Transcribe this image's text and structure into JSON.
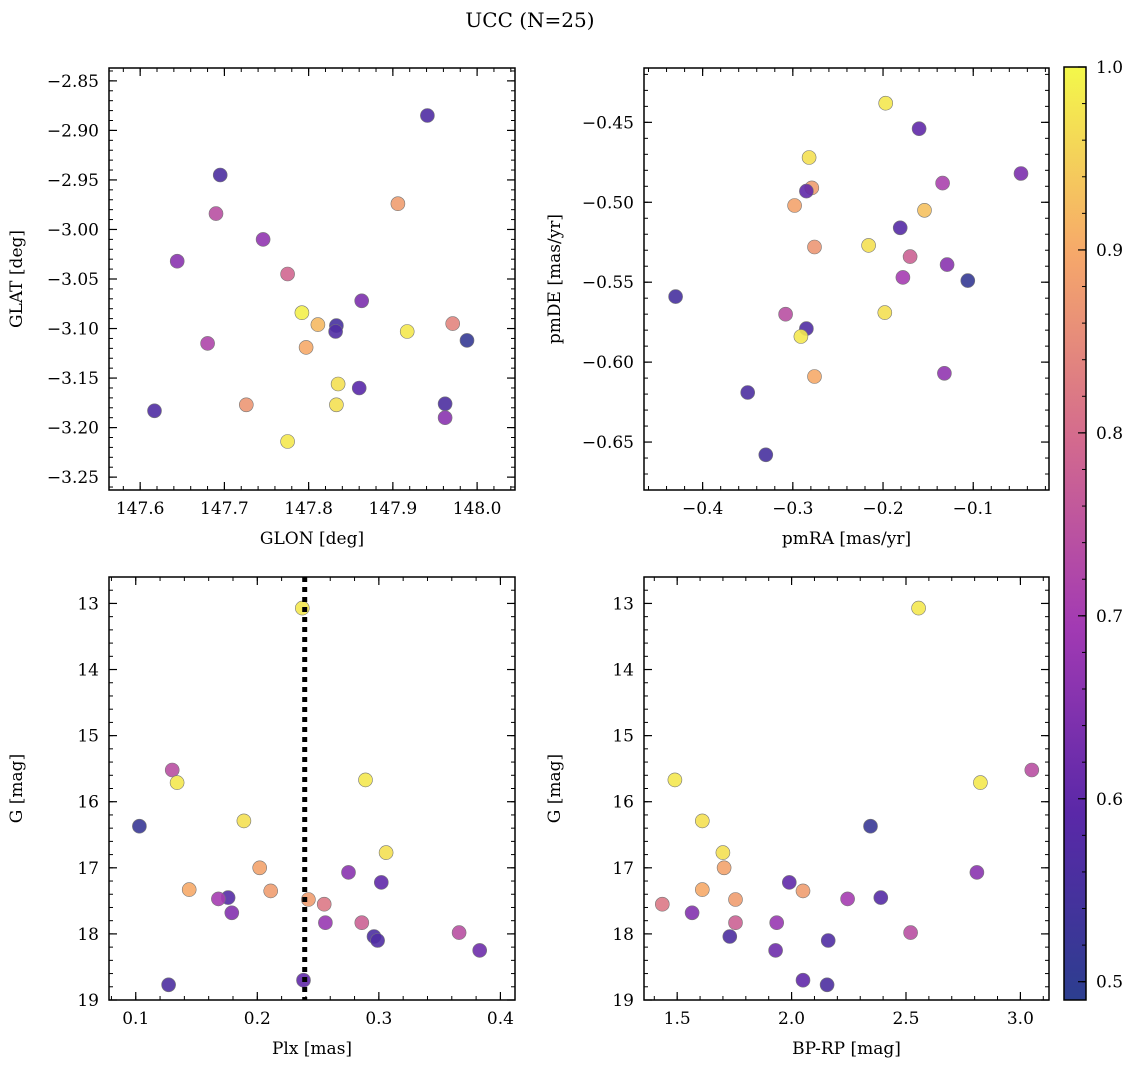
{
  "title": "UCC (N=25)",
  "colorbar": {
    "min": 0.49,
    "max": 1.0,
    "ticks": [
      0.5,
      0.6,
      0.7,
      0.8,
      0.9,
      1.0
    ],
    "tick_labels": [
      "0.5",
      "0.6",
      "0.7",
      "0.8",
      "0.9",
      "1.0"
    ],
    "colormap": "plasma"
  },
  "chart_data": [
    {
      "type": "scatter",
      "xlabel": "GLON [deg]",
      "ylabel": "GLAT [deg]",
      "xlim": [
        147.563,
        148.045
      ],
      "ylim": [
        -3.263,
        -2.837
      ],
      "y_inverted": false,
      "xticks": [
        147.6,
        147.7,
        147.8,
        147.9,
        148.0
      ],
      "xtick_labels": [
        "147.6",
        "147.7",
        "147.8",
        "147.9",
        "148.0"
      ],
      "yticks": [
        -3.25,
        -3.2,
        -3.15,
        -3.1,
        -3.05,
        -3.0,
        -2.95,
        -2.9,
        -2.85
      ],
      "ytick_labels": [
        "−3.25",
        "−3.20",
        "−3.15",
        "−3.10",
        "−3.05",
        "−3.00",
        "−2.95",
        "−2.90",
        "−2.85"
      ],
      "points": [
        {
          "x": 147.941,
          "y": -2.885,
          "c": 0.57
        },
        {
          "x": 147.695,
          "y": -2.945,
          "c": 0.56
        },
        {
          "x": 147.69,
          "y": -2.984,
          "c": 0.74
        },
        {
          "x": 147.906,
          "y": -2.974,
          "c": 0.88
        },
        {
          "x": 147.746,
          "y": -3.01,
          "c": 0.67
        },
        {
          "x": 147.644,
          "y": -3.032,
          "c": 0.66
        },
        {
          "x": 147.775,
          "y": -3.045,
          "c": 0.79
        },
        {
          "x": 147.863,
          "y": -3.072,
          "c": 0.64
        },
        {
          "x": 147.792,
          "y": -3.084,
          "c": 0.99
        },
        {
          "x": 147.811,
          "y": -3.096,
          "c": 0.92
        },
        {
          "x": 147.833,
          "y": -3.097,
          "c": 0.55
        },
        {
          "x": 147.971,
          "y": -3.095,
          "c": 0.84
        },
        {
          "x": 147.832,
          "y": -3.103,
          "c": 0.57
        },
        {
          "x": 147.917,
          "y": -3.103,
          "c": 0.98
        },
        {
          "x": 147.988,
          "y": -3.112,
          "c": 0.51
        },
        {
          "x": 147.68,
          "y": -3.115,
          "c": 0.72
        },
        {
          "x": 147.797,
          "y": -3.119,
          "c": 0.9
        },
        {
          "x": 147.835,
          "y": -3.156,
          "c": 0.97
        },
        {
          "x": 147.86,
          "y": -3.16,
          "c": 0.59
        },
        {
          "x": 147.726,
          "y": -3.177,
          "c": 0.87
        },
        {
          "x": 147.833,
          "y": -3.177,
          "c": 0.97
        },
        {
          "x": 147.962,
          "y": -3.176,
          "c": 0.56
        },
        {
          "x": 147.617,
          "y": -3.183,
          "c": 0.57
        },
        {
          "x": 147.962,
          "y": -3.19,
          "c": 0.66
        },
        {
          "x": 147.775,
          "y": -3.214,
          "c": 0.98
        }
      ]
    },
    {
      "type": "scatter",
      "xlabel": "pmRA [mas/yr]",
      "ylabel": "pmDE [mas/yr]",
      "xlim": [
        -0.465,
        -0.016
      ],
      "ylim": [
        -0.68,
        -0.416
      ],
      "y_inverted": false,
      "xticks": [
        -0.4,
        -0.3,
        -0.2,
        -0.1
      ],
      "xtick_labels": [
        "−0.4",
        "−0.3",
        "−0.2",
        "−0.1"
      ],
      "yticks": [
        -0.65,
        -0.6,
        -0.55,
        -0.5,
        -0.45
      ],
      "ytick_labels": [
        "−0.65",
        "−0.60",
        "−0.55",
        "−0.50",
        "−0.45"
      ],
      "points": [
        {
          "x": -0.197,
          "y": -0.438,
          "c": 0.98
        },
        {
          "x": -0.16,
          "y": -0.454,
          "c": 0.6
        },
        {
          "x": -0.282,
          "y": -0.472,
          "c": 0.97
        },
        {
          "x": -0.047,
          "y": -0.482,
          "c": 0.64
        },
        {
          "x": -0.134,
          "y": -0.488,
          "c": 0.71
        },
        {
          "x": -0.279,
          "y": -0.491,
          "c": 0.88
        },
        {
          "x": -0.285,
          "y": -0.493,
          "c": 0.6
        },
        {
          "x": -0.298,
          "y": -0.502,
          "c": 0.89
        },
        {
          "x": -0.154,
          "y": -0.505,
          "c": 0.93
        },
        {
          "x": -0.181,
          "y": -0.516,
          "c": 0.58
        },
        {
          "x": -0.216,
          "y": -0.527,
          "c": 0.97
        },
        {
          "x": -0.276,
          "y": -0.528,
          "c": 0.87
        },
        {
          "x": -0.17,
          "y": -0.534,
          "c": 0.78
        },
        {
          "x": -0.129,
          "y": -0.539,
          "c": 0.66
        },
        {
          "x": -0.178,
          "y": -0.547,
          "c": 0.7
        },
        {
          "x": -0.106,
          "y": -0.549,
          "c": 0.51
        },
        {
          "x": -0.43,
          "y": -0.559,
          "c": 0.55
        },
        {
          "x": -0.308,
          "y": -0.57,
          "c": 0.74
        },
        {
          "x": -0.198,
          "y": -0.569,
          "c": 0.97
        },
        {
          "x": -0.285,
          "y": -0.579,
          "c": 0.57
        },
        {
          "x": -0.291,
          "y": -0.584,
          "c": 0.98
        },
        {
          "x": -0.132,
          "y": -0.607,
          "c": 0.67
        },
        {
          "x": -0.276,
          "y": -0.609,
          "c": 0.9
        },
        {
          "x": -0.35,
          "y": -0.619,
          "c": 0.56
        },
        {
          "x": -0.33,
          "y": -0.658,
          "c": 0.55
        }
      ]
    },
    {
      "type": "scatter",
      "xlabel": "Plx [mas]",
      "ylabel": "G [mag]",
      "xlim": [
        0.078,
        0.412
      ],
      "ylim": [
        19.0,
        12.6
      ],
      "y_inverted": true,
      "xticks": [
        0.1,
        0.2,
        0.3,
        0.4
      ],
      "xtick_labels": [
        "0.1",
        "0.2",
        "0.3",
        "0.4"
      ],
      "yticks": [
        13,
        14,
        15,
        16,
        17,
        18,
        19
      ],
      "ytick_labels": [
        "13",
        "14",
        "15",
        "16",
        "17",
        "18",
        "19"
      ],
      "vline": {
        "x": 0.239,
        "style": "dotted"
      },
      "points": [
        {
          "x": 0.237,
          "y": 13.07,
          "c": 0.98
        },
        {
          "x": 0.13,
          "y": 15.52,
          "c": 0.74
        },
        {
          "x": 0.134,
          "y": 15.71,
          "c": 0.98
        },
        {
          "x": 0.289,
          "y": 15.67,
          "c": 0.98
        },
        {
          "x": 0.103,
          "y": 16.37,
          "c": 0.52
        },
        {
          "x": 0.189,
          "y": 16.29,
          "c": 0.97
        },
        {
          "x": 0.306,
          "y": 16.77,
          "c": 0.97
        },
        {
          "x": 0.202,
          "y": 17.0,
          "c": 0.89
        },
        {
          "x": 0.275,
          "y": 17.07,
          "c": 0.66
        },
        {
          "x": 0.302,
          "y": 17.22,
          "c": 0.6
        },
        {
          "x": 0.144,
          "y": 17.33,
          "c": 0.9
        },
        {
          "x": 0.211,
          "y": 17.35,
          "c": 0.88
        },
        {
          "x": 0.176,
          "y": 17.45,
          "c": 0.58
        },
        {
          "x": 0.168,
          "y": 17.47,
          "c": 0.7
        },
        {
          "x": 0.242,
          "y": 17.48,
          "c": 0.88
        },
        {
          "x": 0.255,
          "y": 17.55,
          "c": 0.82
        },
        {
          "x": 0.179,
          "y": 17.68,
          "c": 0.65
        },
        {
          "x": 0.286,
          "y": 17.83,
          "c": 0.78
        },
        {
          "x": 0.256,
          "y": 17.83,
          "c": 0.68
        },
        {
          "x": 0.366,
          "y": 17.98,
          "c": 0.74
        },
        {
          "x": 0.296,
          "y": 18.04,
          "c": 0.56
        },
        {
          "x": 0.299,
          "y": 18.1,
          "c": 0.57
        },
        {
          "x": 0.383,
          "y": 18.25,
          "c": 0.62
        },
        {
          "x": 0.238,
          "y": 18.7,
          "c": 0.6
        },
        {
          "x": 0.127,
          "y": 18.77,
          "c": 0.56
        }
      ]
    },
    {
      "type": "scatter",
      "xlabel": "BP-RP [mag]",
      "ylabel": "G [mag]",
      "xlim": [
        1.355,
        3.125
      ],
      "ylim": [
        19.0,
        12.6
      ],
      "y_inverted": true,
      "xticks": [
        1.5,
        2.0,
        2.5,
        3.0
      ],
      "xtick_labels": [
        "1.5",
        "2.0",
        "2.5",
        "3.0"
      ],
      "yticks": [
        13,
        14,
        15,
        16,
        17,
        18,
        19
      ],
      "ytick_labels": [
        "13",
        "14",
        "15",
        "16",
        "17",
        "18",
        "19"
      ],
      "points": [
        {
          "x": 2.555,
          "y": 13.07,
          "c": 0.98
        },
        {
          "x": 3.05,
          "y": 15.52,
          "c": 0.74
        },
        {
          "x": 1.49,
          "y": 15.67,
          "c": 0.98
        },
        {
          "x": 2.825,
          "y": 15.71,
          "c": 0.98
        },
        {
          "x": 2.345,
          "y": 16.37,
          "c": 0.52
        },
        {
          "x": 1.61,
          "y": 16.29,
          "c": 0.97
        },
        {
          "x": 1.7,
          "y": 16.77,
          "c": 0.97
        },
        {
          "x": 1.705,
          "y": 17.0,
          "c": 0.89
        },
        {
          "x": 2.81,
          "y": 17.07,
          "c": 0.66
        },
        {
          "x": 1.99,
          "y": 17.22,
          "c": 0.6
        },
        {
          "x": 1.61,
          "y": 17.33,
          "c": 0.9
        },
        {
          "x": 2.05,
          "y": 17.35,
          "c": 0.88
        },
        {
          "x": 2.39,
          "y": 17.45,
          "c": 0.58
        },
        {
          "x": 2.245,
          "y": 17.47,
          "c": 0.7
        },
        {
          "x": 1.755,
          "y": 17.48,
          "c": 0.88
        },
        {
          "x": 1.435,
          "y": 17.55,
          "c": 0.82
        },
        {
          "x": 1.565,
          "y": 17.68,
          "c": 0.65
        },
        {
          "x": 1.755,
          "y": 17.83,
          "c": 0.78
        },
        {
          "x": 1.935,
          "y": 17.83,
          "c": 0.68
        },
        {
          "x": 2.52,
          "y": 17.98,
          "c": 0.74
        },
        {
          "x": 1.73,
          "y": 18.04,
          "c": 0.56
        },
        {
          "x": 2.16,
          "y": 18.1,
          "c": 0.57
        },
        {
          "x": 1.93,
          "y": 18.25,
          "c": 0.62
        },
        {
          "x": 2.05,
          "y": 18.7,
          "c": 0.6
        },
        {
          "x": 2.155,
          "y": 18.77,
          "c": 0.56
        }
      ]
    }
  ]
}
